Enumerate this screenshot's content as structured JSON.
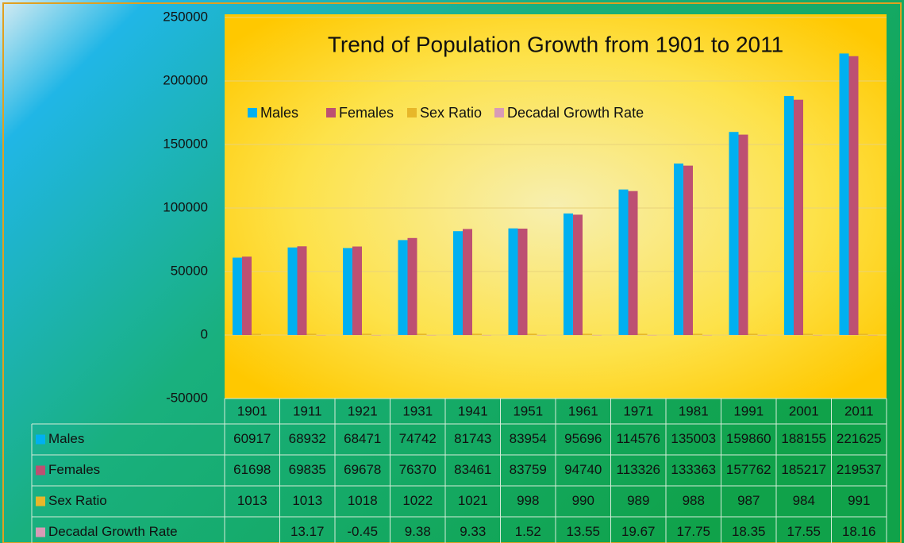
{
  "chart_data": {
    "type": "bar",
    "title": "Trend of Population Growth from 1901 to 2011",
    "categories": [
      "1901",
      "1911",
      "1921",
      "1931",
      "1941",
      "1951",
      "1961",
      "1971",
      "1981",
      "1991",
      "2001",
      "2011"
    ],
    "series": [
      {
        "name": "Males",
        "color": "#00b0f0",
        "values": [
          60917,
          68932,
          68471,
          74742,
          81743,
          83954,
          95696,
          114576,
          135003,
          159860,
          188155,
          221625
        ]
      },
      {
        "name": "Females",
        "color": "#bd5072",
        "values": [
          61698,
          69835,
          69678,
          76370,
          83461,
          83759,
          94740,
          113326,
          133363,
          157762,
          185217,
          219537
        ]
      },
      {
        "name": "Sex Ratio",
        "color": "#e7b72a",
        "values": [
          1013,
          1013,
          1018,
          1022,
          1021,
          998,
          990,
          989,
          988,
          987,
          984,
          991
        ]
      },
      {
        "name": "Decadal Growth Rate",
        "color": "#d89bb6",
        "values": [
          null,
          13.17,
          -0.45,
          9.38,
          9.33,
          1.52,
          13.55,
          19.67,
          17.75,
          18.35,
          17.55,
          18.16
        ]
      }
    ],
    "ylim": [
      -50000,
      250000
    ],
    "yticks": [
      -50000,
      0,
      50000,
      100000,
      150000,
      200000,
      250000
    ],
    "grid": true,
    "legend": "top"
  }
}
